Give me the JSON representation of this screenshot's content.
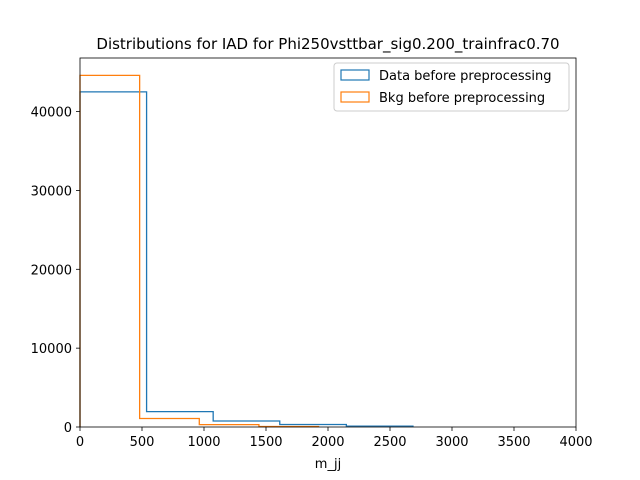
{
  "chart_data": {
    "type": "histogram-step",
    "title": "Distributions for IAD for Phi250vsttbar_sig0.200_trainfrac0.70",
    "xlabel": "m_jj",
    "ylabel": "",
    "xlim": [
      0,
      4000
    ],
    "ylim": [
      0,
      46800
    ],
    "xticks": [
      0,
      500,
      1000,
      1500,
      2000,
      2500,
      3000,
      3500,
      4000
    ],
    "yticks": [
      0,
      10000,
      20000,
      30000,
      40000
    ],
    "legend_position": "upper right",
    "series": [
      {
        "name": "Data before preprocessing",
        "color": "#1f77b4",
        "bin_edges": [
          0,
          537,
          1074,
          1611,
          2148,
          2685
        ],
        "counts": [
          42500,
          1950,
          760,
          320,
          110
        ]
      },
      {
        "name": "Bkg before preprocessing",
        "color": "#ff7f0e",
        "bin_edges": [
          0,
          481,
          962,
          1443,
          1924
        ],
        "counts": [
          44600,
          1080,
          300,
          60
        ]
      }
    ]
  }
}
